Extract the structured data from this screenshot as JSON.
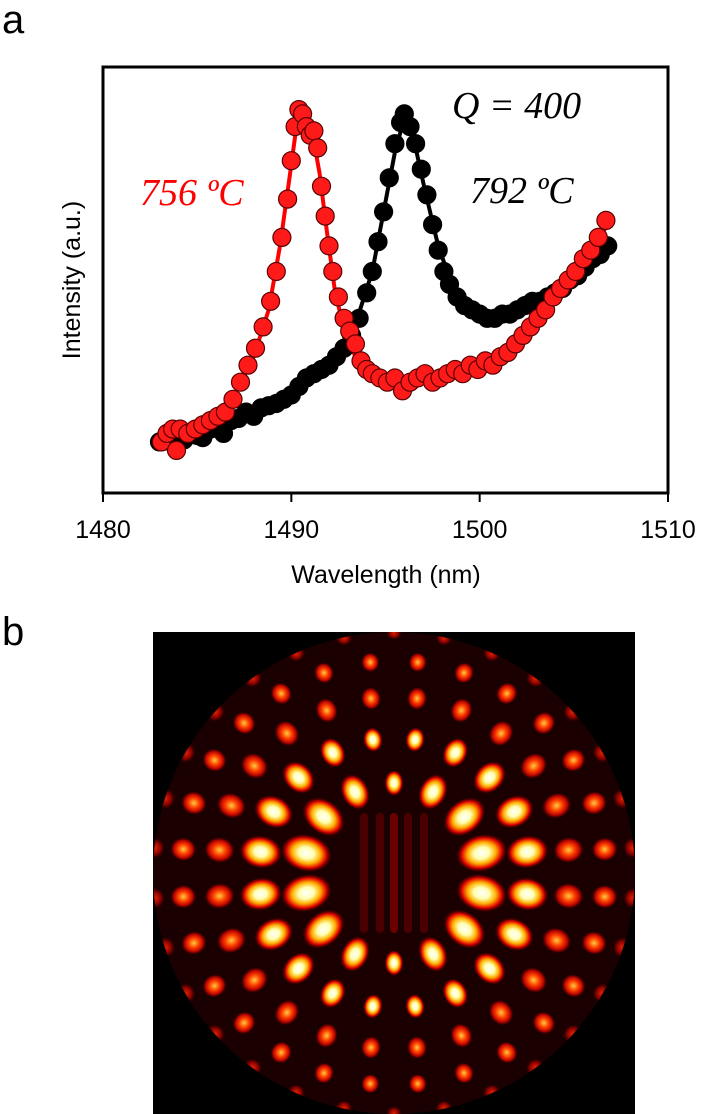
{
  "panels": {
    "a_label": "a",
    "b_label": "b"
  },
  "colors": {
    "red": "#ff0000",
    "black": "#000000",
    "red_marker": "#ff1a1a"
  },
  "chart_data": [
    {
      "type": "scatter",
      "title": "",
      "xlabel": "Wavelength (nm)",
      "ylabel": "Intensity (a.u.)",
      "xlim": [
        1480,
        1510
      ],
      "ylim": [
        0,
        1
      ],
      "xticks": [
        1480,
        1490,
        1500,
        1510
      ],
      "yticks": [],
      "annotations": [
        {
          "key": "q",
          "text": "Q = 400",
          "color": "#000000"
        },
        {
          "key": "red_temp",
          "text": "756 ºC",
          "color": "#ff0000"
        },
        {
          "key": "black_temp",
          "text": "792 ºC",
          "color": "#000000"
        }
      ],
      "series": [
        {
          "name": "792 ºC",
          "color": "#000000",
          "points": [
            [
              1483.0,
              0.12
            ],
            [
              1483.3,
              0.125
            ],
            [
              1483.6,
              0.12
            ],
            [
              1484.0,
              0.13
            ],
            [
              1484.3,
              0.125
            ],
            [
              1484.7,
              0.14
            ],
            [
              1485.0,
              0.135
            ],
            [
              1485.3,
              0.13
            ],
            [
              1485.7,
              0.15
            ],
            [
              1486.0,
              0.16
            ],
            [
              1486.4,
              0.14
            ],
            [
              1486.8,
              0.17
            ],
            [
              1487.2,
              0.175
            ],
            [
              1487.6,
              0.19
            ],
            [
              1488.0,
              0.18
            ],
            [
              1488.4,
              0.2
            ],
            [
              1488.8,
              0.205
            ],
            [
              1489.2,
              0.21
            ],
            [
              1489.6,
              0.22
            ],
            [
              1490.0,
              0.23
            ],
            [
              1490.4,
              0.25
            ],
            [
              1490.8,
              0.27
            ],
            [
              1491.2,
              0.28
            ],
            [
              1491.6,
              0.29
            ],
            [
              1492.0,
              0.3
            ],
            [
              1492.4,
              0.32
            ],
            [
              1492.8,
              0.34
            ],
            [
              1493.2,
              0.37
            ],
            [
              1493.6,
              0.41
            ],
            [
              1494.0,
              0.47
            ],
            [
              1494.3,
              0.52
            ],
            [
              1494.6,
              0.59
            ],
            [
              1494.9,
              0.66
            ],
            [
              1495.2,
              0.74
            ],
            [
              1495.5,
              0.82
            ],
            [
              1495.8,
              0.87
            ],
            [
              1496.0,
              0.89
            ],
            [
              1496.3,
              0.86
            ],
            [
              1496.6,
              0.82
            ],
            [
              1496.9,
              0.76
            ],
            [
              1497.2,
              0.7
            ],
            [
              1497.5,
              0.63
            ],
            [
              1497.8,
              0.57
            ],
            [
              1498.1,
              0.52
            ],
            [
              1498.4,
              0.49
            ],
            [
              1498.8,
              0.46
            ],
            [
              1499.2,
              0.44
            ],
            [
              1499.6,
              0.43
            ],
            [
              1500.0,
              0.42
            ],
            [
              1500.4,
              0.41
            ],
            [
              1500.8,
              0.41
            ],
            [
              1501.2,
              0.42
            ],
            [
              1501.6,
              0.42
            ],
            [
              1502.0,
              0.43
            ],
            [
              1502.4,
              0.44
            ],
            [
              1502.8,
              0.45
            ],
            [
              1503.2,
              0.45
            ],
            [
              1503.6,
              0.46
            ],
            [
              1504.0,
              0.47
            ],
            [
              1504.4,
              0.48
            ],
            [
              1504.8,
              0.5
            ],
            [
              1505.2,
              0.51
            ],
            [
              1505.6,
              0.53
            ],
            [
              1506.0,
              0.55
            ],
            [
              1506.4,
              0.56
            ],
            [
              1506.8,
              0.58
            ]
          ],
          "fit": [
            [
              1483.0,
              0.12
            ],
            [
              1485.0,
              0.13
            ],
            [
              1487.0,
              0.16
            ],
            [
              1489.0,
              0.2
            ],
            [
              1491.0,
              0.26
            ],
            [
              1492.5,
              0.33
            ],
            [
              1493.5,
              0.41
            ],
            [
              1494.3,
              0.52
            ],
            [
              1494.9,
              0.66
            ],
            [
              1495.5,
              0.8
            ],
            [
              1496.0,
              0.88
            ],
            [
              1496.5,
              0.83
            ],
            [
              1497.1,
              0.71
            ],
            [
              1497.8,
              0.58
            ],
            [
              1498.6,
              0.48
            ],
            [
              1499.5,
              0.43
            ],
            [
              1500.5,
              0.41
            ],
            [
              1501.5,
              0.42
            ],
            [
              1502.5,
              0.44
            ],
            [
              1503.5,
              0.46
            ],
            [
              1504.5,
              0.49
            ],
            [
              1505.5,
              0.52
            ],
            [
              1506.5,
              0.56
            ],
            [
              1507.0,
              0.58
            ]
          ]
        },
        {
          "name": "756 ºC",
          "color": "#ff0000",
          "points": [
            [
              1483.1,
              0.12
            ],
            [
              1483.4,
              0.14
            ],
            [
              1483.7,
              0.15
            ],
            [
              1483.9,
              0.1
            ],
            [
              1484.1,
              0.15
            ],
            [
              1484.5,
              0.14
            ],
            [
              1484.9,
              0.15
            ],
            [
              1485.3,
              0.16
            ],
            [
              1485.7,
              0.17
            ],
            [
              1486.1,
              0.18
            ],
            [
              1486.5,
              0.19
            ],
            [
              1486.9,
              0.22
            ],
            [
              1487.3,
              0.26
            ],
            [
              1487.7,
              0.3
            ],
            [
              1488.1,
              0.34
            ],
            [
              1488.5,
              0.39
            ],
            [
              1488.9,
              0.45
            ],
            [
              1489.2,
              0.52
            ],
            [
              1489.5,
              0.6
            ],
            [
              1489.8,
              0.69
            ],
            [
              1490.0,
              0.78
            ],
            [
              1490.2,
              0.86
            ],
            [
              1490.4,
              0.9
            ],
            [
              1490.6,
              0.89
            ],
            [
              1490.8,
              0.86
            ],
            [
              1491.0,
              0.84
            ],
            [
              1491.2,
              0.85
            ],
            [
              1491.4,
              0.81
            ],
            [
              1491.6,
              0.72
            ],
            [
              1491.8,
              0.65
            ],
            [
              1492.0,
              0.58
            ],
            [
              1492.2,
              0.52
            ],
            [
              1492.5,
              0.46
            ],
            [
              1492.8,
              0.41
            ],
            [
              1493.1,
              0.38
            ],
            [
              1493.4,
              0.35
            ],
            [
              1493.7,
              0.31
            ],
            [
              1494.0,
              0.29
            ],
            [
              1494.3,
              0.28
            ],
            [
              1494.7,
              0.27
            ],
            [
              1495.1,
              0.26
            ],
            [
              1495.5,
              0.27
            ],
            [
              1495.9,
              0.24
            ],
            [
              1496.3,
              0.26
            ],
            [
              1496.7,
              0.27
            ],
            [
              1497.1,
              0.28
            ],
            [
              1497.5,
              0.26
            ],
            [
              1497.9,
              0.27
            ],
            [
              1498.3,
              0.28
            ],
            [
              1498.7,
              0.29
            ],
            [
              1499.1,
              0.28
            ],
            [
              1499.5,
              0.3
            ],
            [
              1499.9,
              0.29
            ],
            [
              1500.3,
              0.31
            ],
            [
              1500.7,
              0.3
            ],
            [
              1501.1,
              0.32
            ],
            [
              1501.5,
              0.33
            ],
            [
              1501.9,
              0.35
            ],
            [
              1502.3,
              0.37
            ],
            [
              1502.7,
              0.39
            ],
            [
              1503.1,
              0.41
            ],
            [
              1503.5,
              0.43
            ],
            [
              1503.9,
              0.46
            ],
            [
              1504.3,
              0.48
            ],
            [
              1504.7,
              0.5
            ],
            [
              1505.1,
              0.52
            ],
            [
              1505.5,
              0.55
            ],
            [
              1505.9,
              0.57
            ],
            [
              1506.3,
              0.6
            ],
            [
              1506.7,
              0.64
            ]
          ],
          "fit": [
            [
              1483.0,
              0.12
            ],
            [
              1484.5,
              0.14
            ],
            [
              1486.0,
              0.18
            ],
            [
              1487.0,
              0.23
            ],
            [
              1488.0,
              0.32
            ],
            [
              1488.8,
              0.43
            ],
            [
              1489.4,
              0.58
            ],
            [
              1489.9,
              0.74
            ],
            [
              1490.3,
              0.87
            ],
            [
              1490.7,
              0.88
            ],
            [
              1491.1,
              0.85
            ],
            [
              1491.5,
              0.75
            ],
            [
              1491.9,
              0.61
            ],
            [
              1492.3,
              0.48
            ],
            [
              1492.8,
              0.38
            ],
            [
              1493.5,
              0.31
            ],
            [
              1494.5,
              0.27
            ],
            [
              1495.5,
              0.25
            ],
            [
              1496.5,
              0.26
            ],
            [
              1497.5,
              0.27
            ],
            [
              1498.5,
              0.28
            ],
            [
              1499.5,
              0.29
            ],
            [
              1500.5,
              0.31
            ],
            [
              1501.5,
              0.33
            ],
            [
              1502.5,
              0.38
            ],
            [
              1503.5,
              0.43
            ],
            [
              1504.5,
              0.48
            ],
            [
              1505.5,
              0.54
            ],
            [
              1506.5,
              0.61
            ],
            [
              1507.0,
              0.64
            ]
          ]
        }
      ]
    },
    {
      "type": "heatmap",
      "title": "",
      "colormap": "hot",
      "description_of_pattern": "whispering-gallery mode intensity in a circular cavity"
    }
  ]
}
